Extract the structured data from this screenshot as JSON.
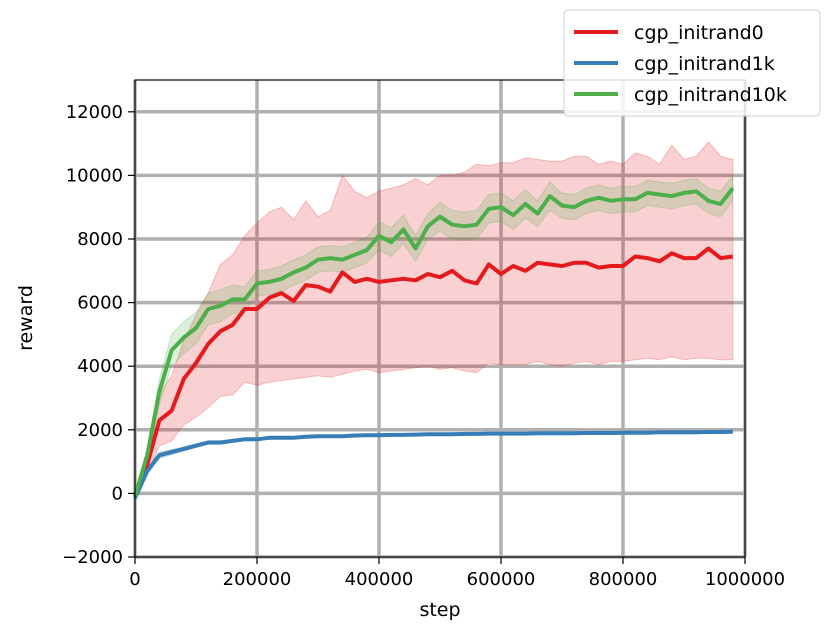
{
  "chart_data": {
    "type": "line",
    "xlabel": "step",
    "ylabel": "reward",
    "xlim": [
      0,
      1000000
    ],
    "ylim": [
      -2000,
      13000
    ],
    "xticks": [
      0,
      200000,
      400000,
      600000,
      800000,
      1000000
    ],
    "xtick_labels": [
      "0",
      "200000",
      "400000",
      "600000",
      "800000",
      "1000000"
    ],
    "yticks": [
      -2000,
      0,
      2000,
      4000,
      6000,
      8000,
      10000,
      12000
    ],
    "ytick_labels": [
      "−2000",
      "0",
      "2000",
      "4000",
      "6000",
      "8000",
      "10000",
      "12000"
    ],
    "grid": true,
    "legend_position": "top-right",
    "x": [
      0,
      20000,
      40000,
      60000,
      80000,
      100000,
      120000,
      140000,
      160000,
      180000,
      200000,
      220000,
      240000,
      260000,
      280000,
      300000,
      320000,
      340000,
      360000,
      380000,
      400000,
      420000,
      440000,
      460000,
      480000,
      500000,
      520000,
      540000,
      560000,
      580000,
      600000,
      620000,
      640000,
      660000,
      680000,
      700000,
      720000,
      740000,
      760000,
      780000,
      800000,
      820000,
      840000,
      860000,
      880000,
      900000,
      920000,
      940000,
      960000,
      980000
    ],
    "series": [
      {
        "name": "cgp_initrand0",
        "color": "#e41a1c",
        "values": [
          -100,
          900,
          2300,
          2600,
          3600,
          4100,
          4700,
          5100,
          5300,
          5800,
          5800,
          6150,
          6300,
          6050,
          6550,
          6500,
          6350,
          6950,
          6650,
          6750,
          6650,
          6700,
          6750,
          6700,
          6900,
          6800,
          7000,
          6700,
          6600,
          7200,
          6900,
          7150,
          7000,
          7250,
          7200,
          7150,
          7250,
          7250,
          7100,
          7150,
          7150,
          7450,
          7400,
          7300,
          7550,
          7400,
          7400,
          7700,
          7400,
          7450
        ],
        "lower": [
          -200,
          600,
          1500,
          1650,
          2150,
          2400,
          2700,
          3050,
          3100,
          3500,
          3400,
          3500,
          3550,
          3600,
          3650,
          3700,
          3650,
          3750,
          3850,
          3900,
          3800,
          3850,
          3900,
          3950,
          4000,
          3900,
          3950,
          3850,
          3800,
          4100,
          4050,
          4050,
          4050,
          4150,
          4050,
          4000,
          4100,
          4150,
          4050,
          4150,
          4150,
          4200,
          4250,
          4200,
          4300,
          4200,
          4250,
          4250,
          4200,
          4200
        ],
        "upper": [
          0,
          1300,
          3100,
          3700,
          4800,
          5600,
          6300,
          7200,
          7500,
          8100,
          8500,
          8850,
          9000,
          8600,
          9200,
          8700,
          8900,
          10000,
          9500,
          9300,
          9500,
          9600,
          9700,
          9900,
          9700,
          10000,
          10000,
          10100,
          10350,
          10300,
          10400,
          10400,
          10550,
          10500,
          10450,
          10450,
          10600,
          10600,
          10350,
          10450,
          10350,
          10700,
          10600,
          10350,
          10950,
          10500,
          10600,
          11050,
          10600,
          10500
        ]
      },
      {
        "name": "cgp_initrand1k",
        "color": "#377eb8",
        "values": [
          -150,
          700,
          1200,
          1300,
          1400,
          1500,
          1600,
          1600,
          1650,
          1700,
          1700,
          1750,
          1750,
          1750,
          1780,
          1800,
          1800,
          1800,
          1820,
          1830,
          1830,
          1840,
          1840,
          1850,
          1860,
          1860,
          1860,
          1870,
          1870,
          1880,
          1880,
          1880,
          1880,
          1890,
          1890,
          1890,
          1890,
          1900,
          1900,
          1900,
          1910,
          1910,
          1910,
          1920,
          1920,
          1920,
          1920,
          1930,
          1930,
          1940
        ],
        "lower": [
          -200,
          600,
          1100,
          1220,
          1330,
          1440,
          1540,
          1550,
          1600,
          1650,
          1660,
          1710,
          1710,
          1710,
          1740,
          1760,
          1760,
          1760,
          1780,
          1790,
          1790,
          1800,
          1800,
          1810,
          1820,
          1820,
          1820,
          1830,
          1830,
          1840,
          1840,
          1840,
          1840,
          1850,
          1850,
          1850,
          1850,
          1860,
          1860,
          1860,
          1870,
          1870,
          1870,
          1880,
          1880,
          1880,
          1880,
          1890,
          1890,
          1900
        ],
        "upper": [
          -100,
          800,
          1300,
          1380,
          1470,
          1560,
          1660,
          1650,
          1700,
          1750,
          1740,
          1790,
          1790,
          1790,
          1820,
          1840,
          1840,
          1840,
          1860,
          1870,
          1870,
          1880,
          1880,
          1890,
          1900,
          1900,
          1900,
          1910,
          1910,
          1920,
          1920,
          1920,
          1920,
          1930,
          1930,
          1930,
          1930,
          1940,
          1940,
          1940,
          1950,
          1950,
          1950,
          1960,
          1960,
          1960,
          1960,
          1970,
          1970,
          1980
        ]
      },
      {
        "name": "cgp_initrand10k",
        "color": "#4daf4a",
        "values": [
          -100,
          1200,
          3200,
          4500,
          4900,
          5200,
          5800,
          5900,
          6100,
          6100,
          6600,
          6650,
          6750,
          6950,
          7100,
          7350,
          7400,
          7350,
          7500,
          7650,
          8100,
          7900,
          8300,
          7700,
          8400,
          8700,
          8450,
          8400,
          8450,
          8950,
          9000,
          8750,
          9100,
          8800,
          9350,
          9050,
          9000,
          9200,
          9300,
          9200,
          9250,
          9250,
          9450,
          9400,
          9350,
          9450,
          9500,
          9200,
          9100,
          9600
        ],
        "lower": [
          -150,
          1000,
          2800,
          4000,
          4400,
          4700,
          5300,
          5400,
          5650,
          5700,
          6200,
          6250,
          6350,
          6550,
          6700,
          6950,
          7000,
          6950,
          7100,
          7250,
          7650,
          7450,
          7850,
          7300,
          8000,
          8250,
          8000,
          7950,
          8000,
          8500,
          8550,
          8300,
          8650,
          8400,
          8900,
          8650,
          8600,
          8800,
          8900,
          8800,
          8850,
          8850,
          9050,
          9000,
          8950,
          9050,
          9100,
          8800,
          8700,
          9200
        ],
        "upper": [
          -50,
          1400,
          3600,
          5000,
          5400,
          5700,
          6300,
          6400,
          6550,
          6500,
          7000,
          7050,
          7150,
          7350,
          7500,
          7750,
          7800,
          7750,
          7900,
          8050,
          8550,
          8350,
          8750,
          8100,
          8800,
          9150,
          8900,
          8850,
          8900,
          9400,
          9450,
          9200,
          9550,
          9200,
          9800,
          9450,
          9400,
          9600,
          9700,
          9600,
          9650,
          9650,
          9850,
          9800,
          9750,
          9850,
          9900,
          9600,
          9500,
          10000
        ]
      }
    ]
  }
}
